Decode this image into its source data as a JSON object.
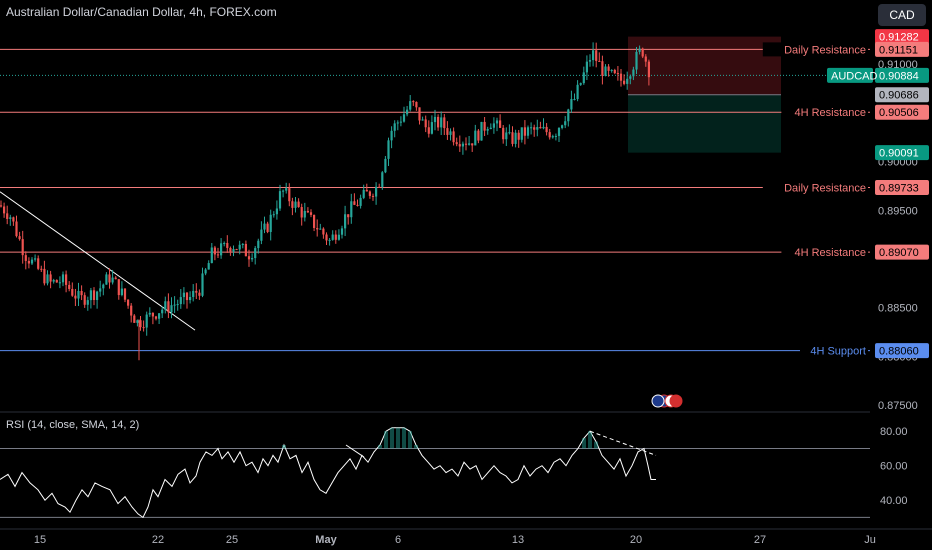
{
  "header": {
    "title": "Australian Dollar/Canadian Dollar, 4h, FOREX.com",
    "currency": "CAD"
  },
  "rsi_title": "RSI (14, close, SMA, 14, 2)",
  "colors": {
    "up": "#26a69a",
    "down": "#ef5350",
    "resistance": "#f47c7c",
    "support": "#5b8def",
    "background": "#000000"
  },
  "chart_data": [
    {
      "type": "candlestick",
      "symbol": "AUDCAD",
      "title": "Australian Dollar/Canadian Dollar, 4h, FOREX.com",
      "ylim": [
        0.8745,
        0.9135
      ],
      "x_ticks": [
        "15",
        "22",
        "25",
        "May",
        "6",
        "13",
        "20",
        "27",
        "Ju"
      ],
      "y_ticks": [
        0.91,
        0.9,
        0.895,
        0.885,
        0.88,
        0.875
      ],
      "waypoints": [
        [
          0,
          0.8955
        ],
        [
          10,
          0.8945
        ],
        [
          25,
          0.8905
        ],
        [
          50,
          0.8875
        ],
        [
          62,
          0.8878
        ],
        [
          80,
          0.8858
        ],
        [
          98,
          0.8868
        ],
        [
          110,
          0.8882
        ],
        [
          120,
          0.8868
        ],
        [
          137,
          0.8835
        ],
        [
          145,
          0.8838
        ],
        [
          160,
          0.8848
        ],
        [
          190,
          0.886
        ],
        [
          200,
          0.887
        ],
        [
          212,
          0.8905
        ],
        [
          232,
          0.8915
        ],
        [
          250,
          0.8905
        ],
        [
          268,
          0.8935
        ],
        [
          282,
          0.897
        ],
        [
          300,
          0.895
        ],
        [
          318,
          0.8932
        ],
        [
          330,
          0.8918
        ],
        [
          348,
          0.8948
        ],
        [
          365,
          0.8965
        ],
        [
          378,
          0.8975
        ],
        [
          390,
          0.903
        ],
        [
          412,
          0.906
        ],
        [
          425,
          0.9035
        ],
        [
          440,
          0.904
        ],
        [
          455,
          0.9025
        ],
        [
          470,
          0.902
        ],
        [
          490,
          0.9042
        ],
        [
          510,
          0.9022
        ],
        [
          530,
          0.9032
        ],
        [
          555,
          0.903
        ],
        [
          575,
          0.9065
        ],
        [
          592,
          0.9112
        ],
        [
          605,
          0.909
        ],
        [
          622,
          0.9083
        ],
        [
          632,
          0.9098
        ],
        [
          642,
          0.9116
        ],
        [
          651,
          0.9088
        ]
      ],
      "levels": [
        {
          "label": "Daily Resistance",
          "value": 0.91151,
          "value_text": "0.91151",
          "kind": "resistance"
        },
        {
          "label": "4H Resistance",
          "value": 0.90506,
          "value_text": "0.90506",
          "kind": "resistance"
        },
        {
          "label": "Daily Resistance",
          "value": 0.89733,
          "value_text": "0.89733",
          "kind": "resistance"
        },
        {
          "label": "4H Resistance",
          "value": 0.8907,
          "value_text": "0.89070",
          "kind": "resistance"
        },
        {
          "label": "4H Support",
          "value": 0.8806,
          "value_text": "0.88060",
          "kind": "support"
        }
      ],
      "current_price": {
        "symbol": "AUDCAD",
        "value": 0.90884,
        "value_text": "0.90884"
      },
      "position": {
        "stop": 0.91282,
        "stop_text": "0.91282",
        "entry": 0.90686,
        "entry_text": "0.90686",
        "target": 0.90091,
        "target_text": "0.90091"
      },
      "trendline": {
        "from": [
          0,
          0.8969
        ],
        "to": [
          195,
          0.8827
        ]
      }
    },
    {
      "type": "line",
      "name": "RSI",
      "ylim": [
        25,
        90
      ],
      "y_ticks": [
        80.0,
        60.0,
        40.0
      ],
      "y_tick_labels": [
        "80.00",
        "60.00",
        "40.00"
      ],
      "bands": [
        70,
        30
      ],
      "points": [
        [
          0,
          52
        ],
        [
          8,
          55
        ],
        [
          15,
          48
        ],
        [
          22,
          56
        ],
        [
          30,
          50
        ],
        [
          38,
          46
        ],
        [
          45,
          40
        ],
        [
          52,
          44
        ],
        [
          58,
          38
        ],
        [
          65,
          36
        ],
        [
          70,
          33
        ],
        [
          76,
          40
        ],
        [
          82,
          46
        ],
        [
          88,
          42
        ],
        [
          95,
          50
        ],
        [
          102,
          48
        ],
        [
          110,
          46
        ],
        [
          118,
          38
        ],
        [
          125,
          42
        ],
        [
          132,
          36
        ],
        [
          138,
          32
        ],
        [
          143,
          30
        ],
        [
          148,
          36
        ],
        [
          153,
          46
        ],
        [
          158,
          42
        ],
        [
          165,
          52
        ],
        [
          172,
          48
        ],
        [
          178,
          55
        ],
        [
          185,
          58
        ],
        [
          190,
          50
        ],
        [
          196,
          54
        ],
        [
          200,
          62
        ],
        [
          206,
          68
        ],
        [
          212,
          66
        ],
        [
          218,
          70
        ],
        [
          222,
          64
        ],
        [
          228,
          68
        ],
        [
          234,
          62
        ],
        [
          240,
          68
        ],
        [
          246,
          60
        ],
        [
          252,
          62
        ],
        [
          258,
          56
        ],
        [
          263,
          64
        ],
        [
          268,
          60
        ],
        [
          273,
          66
        ],
        [
          278,
          62
        ],
        [
          284,
          72
        ],
        [
          290,
          64
        ],
        [
          296,
          66
        ],
        [
          302,
          56
        ],
        [
          308,
          62
        ],
        [
          314,
          52
        ],
        [
          320,
          46
        ],
        [
          326,
          44
        ],
        [
          332,
          50
        ],
        [
          338,
          56
        ],
        [
          344,
          60
        ],
        [
          350,
          64
        ],
        [
          356,
          58
        ],
        [
          362,
          66
        ],
        [
          368,
          62
        ],
        [
          374,
          68
        ],
        [
          380,
          72
        ],
        [
          386,
          80
        ],
        [
          392,
          82
        ],
        [
          398,
          82
        ],
        [
          404,
          82
        ],
        [
          410,
          80
        ],
        [
          416,
          72
        ],
        [
          422,
          66
        ],
        [
          428,
          62
        ],
        [
          434,
          58
        ],
        [
          440,
          60
        ],
        [
          446,
          56
        ],
        [
          452,
          58
        ],
        [
          458,
          54
        ],
        [
          464,
          62
        ],
        [
          470,
          58
        ],
        [
          476,
          60
        ],
        [
          482,
          52
        ],
        [
          488,
          56
        ],
        [
          494,
          60
        ],
        [
          500,
          56
        ],
        [
          506,
          54
        ],
        [
          512,
          50
        ],
        [
          518,
          52
        ],
        [
          524,
          60
        ],
        [
          530,
          54
        ],
        [
          536,
          58
        ],
        [
          542,
          60
        ],
        [
          548,
          56
        ],
        [
          554,
          62
        ],
        [
          560,
          64
        ],
        [
          566,
          60
        ],
        [
          572,
          66
        ],
        [
          578,
          70
        ],
        [
          584,
          76
        ],
        [
          590,
          80
        ],
        [
          596,
          74
        ],
        [
          602,
          66
        ],
        [
          608,
          62
        ],
        [
          614,
          58
        ],
        [
          620,
          64
        ],
        [
          626,
          54
        ],
        [
          632,
          60
        ],
        [
          638,
          68
        ],
        [
          644,
          70
        ],
        [
          648,
          60
        ],
        [
          651,
          52
        ],
        [
          656,
          52
        ]
      ],
      "divergence": {
        "from": [
          590,
          80
        ],
        "to": [
          656,
          66
        ]
      },
      "price_trendline": {
        "from": [
          346,
          72
        ],
        "to": [
          364,
          65
        ]
      }
    }
  ]
}
